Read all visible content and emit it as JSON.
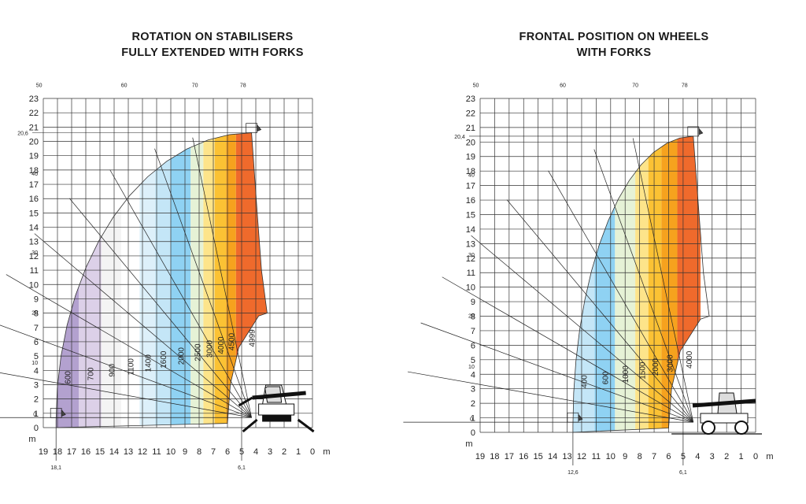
{
  "chart_data": [
    {
      "type": "area",
      "title_line1": "ROTATION ON STABILISERS",
      "title_line2": "FULLY EXTENDED WITH FORKS",
      "x_ticks": [
        "19",
        "18",
        "17",
        "16",
        "15",
        "14",
        "13",
        "12",
        "11",
        "10",
        "9",
        "8",
        "7",
        "6",
        "5",
        "4",
        "3",
        "2",
        "1",
        "0"
      ],
      "x_unit": "m",
      "y_ticks": [
        "0",
        "1",
        "2",
        "3",
        "4",
        "5",
        "6",
        "7",
        "8",
        "9",
        "10",
        "11",
        "12",
        "13",
        "14",
        "15",
        "16",
        "17",
        "18",
        "19",
        "20",
        "21",
        "22",
        "23"
      ],
      "y_unit": "m",
      "xlim": [
        19,
        0
      ],
      "ylim": [
        0,
        23
      ],
      "max_height_label": "20,6",
      "max_height": 20.6,
      "max_reach_label": "18,1",
      "max_reach": 18.1,
      "min_reach_label": "6,1",
      "min_reach": 6.1,
      "angle_labels": [
        "0",
        "10",
        "20",
        "30",
        "40",
        "50",
        "60",
        "70",
        "78"
      ],
      "loads": [
        {
          "label": "600",
          "x_from": 18.1,
          "x_to": 16.5,
          "color": "#b3a1cf"
        },
        {
          "label": "700",
          "x_from": 16.5,
          "x_to": 14.9,
          "color": "#dcd0e8"
        },
        {
          "label": "900",
          "x_from": 14.9,
          "x_to": 13.5,
          "color": "#f4f4f4"
        },
        {
          "label": "1100",
          "x_from": 13.5,
          "x_to": 12.2,
          "color": "#ffffff"
        },
        {
          "label": "1400",
          "x_from": 12.2,
          "x_to": 11.1,
          "color": "#ddf0fa"
        },
        {
          "label": "1600",
          "x_from": 11.1,
          "x_to": 10.0,
          "color": "#c4e6f7"
        },
        {
          "label": "2000",
          "x_from": 10.0,
          "x_to": 8.6,
          "color": "#8fd2f3"
        },
        {
          "label": "2500",
          "x_from": 8.6,
          "x_to": 7.7,
          "color": "#e6f2d6"
        },
        {
          "label": "3000",
          "x_from": 7.7,
          "x_to": 6.9,
          "color": "#fde48a"
        },
        {
          "label": "4000",
          "x_from": 6.9,
          "x_to": 6.1,
          "color": "#fbc234"
        },
        {
          "label": "4500",
          "x_from": 6.1,
          "x_to": 5.4,
          "color": "#f6a21e"
        },
        {
          "label": "4999",
          "x_from": 5.4,
          "x_to": 3.2,
          "color": "#ef6a2c"
        }
      ]
    },
    {
      "type": "area",
      "title_line1": "FRONTAL POSITION ON WHEELS",
      "title_line2": "WITH FORKS",
      "x_ticks": [
        "19",
        "18",
        "17",
        "16",
        "15",
        "14",
        "13",
        "12",
        "11",
        "10",
        "9",
        "8",
        "7",
        "6",
        "5",
        "4",
        "3",
        "2",
        "1",
        "0"
      ],
      "x_unit": "m",
      "y_ticks": [
        "0",
        "1",
        "2",
        "3",
        "4",
        "5",
        "6",
        "7",
        "8",
        "9",
        "10",
        "11",
        "12",
        "13",
        "14",
        "15",
        "16",
        "17",
        "18",
        "19",
        "20",
        "21",
        "22",
        "23"
      ],
      "y_unit": "m",
      "xlim": [
        19,
        0
      ],
      "ylim": [
        0,
        23
      ],
      "max_height_label": "20,4",
      "max_height": 20.4,
      "max_reach_label": "12,6",
      "max_reach": 12.6,
      "min_reach_label": "6,1",
      "min_reach": 6.1,
      "angle_labels": [
        "0",
        "10",
        "20",
        "30",
        "40",
        "50",
        "60",
        "70",
        "78"
      ],
      "loads": [
        {
          "label": "400",
          "x_from": 12.6,
          "x_to": 11.1,
          "color": "#c4e6f7"
        },
        {
          "label": "600",
          "x_from": 11.1,
          "x_to": 9.7,
          "color": "#8fd2f3"
        },
        {
          "label": "1000",
          "x_from": 9.7,
          "x_to": 8.3,
          "color": "#e6f2d6"
        },
        {
          "label": "1500",
          "x_from": 8.3,
          "x_to": 7.4,
          "color": "#fde48a"
        },
        {
          "label": "2000",
          "x_from": 7.4,
          "x_to": 6.5,
          "color": "#fbc234"
        },
        {
          "label": "3000",
          "x_from": 6.5,
          "x_to": 5.4,
          "color": "#f6a21e"
        },
        {
          "label": "4000",
          "x_from": 5.4,
          "x_to": 3.8,
          "color": "#ef6a2c"
        }
      ]
    }
  ]
}
